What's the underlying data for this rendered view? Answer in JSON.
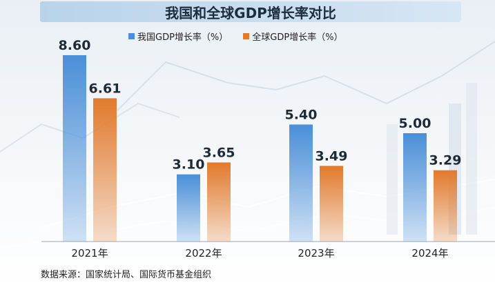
{
  "chart_data": {
    "type": "bar",
    "title": "我国和全球GDP增长率对比",
    "categories": [
      "2021年",
      "2022年",
      "2023年",
      "2024年"
    ],
    "series": [
      {
        "name": "我国GDP增长率（%）",
        "color": "#4a8fd8",
        "values": [
          8.6,
          3.1,
          5.4,
          5.0
        ],
        "labels": [
          "8.60",
          "3.10",
          "5.40",
          "5.00"
        ]
      },
      {
        "name": "全球GDP增长率（%）",
        "color": "#e27a2c",
        "values": [
          6.61,
          3.65,
          3.49,
          3.29
        ],
        "labels": [
          "6.61",
          "3.65",
          "3.49",
          "3.29"
        ]
      }
    ],
    "ylim": [
      0,
      10
    ],
    "source": "数据来源：国家统计局、国际货币基金组织"
  }
}
